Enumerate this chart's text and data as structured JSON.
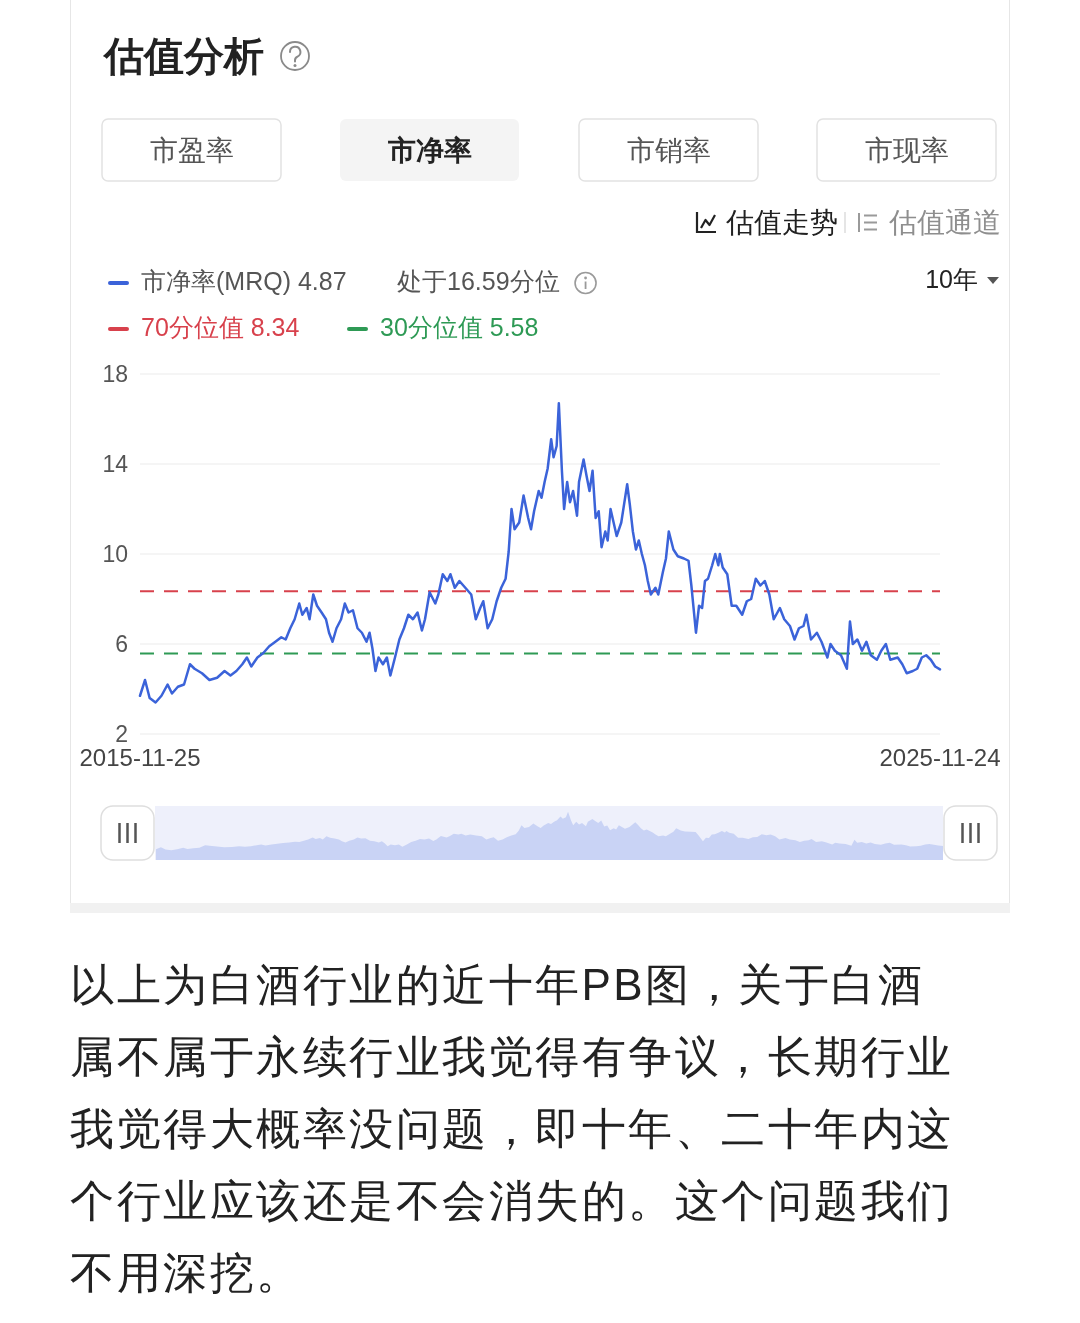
{
  "chart_data": {
    "type": "line",
    "title": "估值分析",
    "x": [
      "2015-11-25",
      "2015-12-18",
      "2016-01-08",
      "2016-02-04",
      "2016-03-02",
      "2016-03-30",
      "2016-04-19",
      "2016-05-16",
      "2016-06-13",
      "2016-07-10",
      "2016-07-31",
      "2016-09-03",
      "2016-10-07",
      "2016-11-11",
      "2016-12-15",
      "2017-01-11",
      "2017-02-07",
      "2017-03-06",
      "2017-03-27",
      "2017-04-16",
      "2017-05-14",
      "2017-06-10",
      "2017-07-07",
      "2017-08-04",
      "2017-08-31",
      "2017-09-20",
      "2017-10-11",
      "2017-10-31",
      "2017-11-21",
      "2017-12-05",
      "2017-12-25",
      "2018-01-07",
      "2018-01-24",
      "2018-02-10",
      "2018-03-03",
      "2018-03-23",
      "2018-04-06",
      "2018-04-22",
      "2018-05-10",
      "2018-05-31",
      "2018-06-17",
      "2018-07-04",
      "2018-07-24",
      "2018-08-14",
      "2018-09-03",
      "2018-09-24",
      "2018-10-08",
      "2018-10-21",
      "2018-11-04",
      "2018-11-18",
      "2018-12-08",
      "2018-12-26",
      "2019-01-11",
      "2019-02-01",
      "2019-02-21",
      "2019-03-14",
      "2019-04-03",
      "2019-04-24",
      "2019-05-15",
      "2019-06-04",
      "2019-06-18",
      "2019-07-09",
      "2019-08-04",
      "2019-08-18",
      "2019-09-07",
      "2019-09-28",
      "2019-10-12",
      "2019-11-01",
      "2019-11-22",
      "2019-12-19",
      "2020-01-15",
      "2020-02-05",
      "2020-02-25",
      "2020-03-10",
      "2020-03-30",
      "2020-04-20",
      "2020-05-10",
      "2020-05-31",
      "2020-06-20",
      "2020-07-04",
      "2020-07-17",
      "2020-07-31",
      "2020-08-21",
      "2020-09-10",
      "2020-10-01",
      "2020-10-14",
      "2020-10-28",
      "2020-11-18",
      "2020-12-01",
      "2020-12-15",
      "2020-12-29",
      "2021-01-14",
      "2021-01-25",
      "2021-02-08",
      "2021-02-18",
      "2021-03-04",
      "2021-03-14",
      "2021-03-28",
      "2021-04-10",
      "2021-04-24",
      "2021-05-12",
      "2021-05-21",
      "2021-06-11",
      "2021-06-24",
      "2021-07-08",
      "2021-07-22",
      "2021-08-05",
      "2021-08-19",
      "2021-09-01",
      "2021-09-18",
      "2021-09-29",
      "2021-10-12",
      "2021-10-26",
      "2021-11-09",
      "2021-11-30",
      "2021-12-27",
      "2022-01-08",
      "2022-01-22",
      "2022-02-05",
      "2022-02-18",
      "2022-03-04",
      "2022-03-18",
      "2022-03-31",
      "2022-04-14",
      "2022-05-05",
      "2022-05-18",
      "2022-06-08",
      "2022-06-22",
      "2022-07-05",
      "2022-07-26",
      "2022-08-15",
      "2022-09-12",
      "2022-10-03",
      "2022-10-16",
      "2022-11-06",
      "2022-11-20",
      "2022-12-04",
      "2022-12-17",
      "2022-12-31",
      "2023-01-19",
      "2023-02-02",
      "2023-02-16",
      "2023-02-23",
      "2023-03-08",
      "2023-03-29",
      "2023-04-18",
      "2023-05-09",
      "2023-06-05",
      "2023-06-26",
      "2023-07-16",
      "2023-08-06",
      "2023-08-27",
      "2023-09-16",
      "2023-10-07",
      "2023-10-27",
      "2023-11-24",
      "2023-12-14",
      "2024-01-09",
      "2024-01-30",
      "2024-02-19",
      "2024-03-11",
      "2024-03-24",
      "2024-04-14",
      "2024-05-11",
      "2024-06-01",
      "2024-06-28",
      "2024-07-12",
      "2024-08-01",
      "2024-08-29",
      "2024-09-25",
      "2024-10-09",
      "2024-10-22",
      "2024-11-12",
      "2024-12-03",
      "2024-12-23",
      "2025-01-12",
      "2025-02-09",
      "2025-03-01",
      "2025-03-22",
      "2025-04-11",
      "2025-05-15",
      "2025-06-05",
      "2025-06-25",
      "2025-07-23",
      "2025-08-12",
      "2025-09-02",
      "2025-09-22",
      "2025-10-13",
      "2025-11-02",
      "2025-11-24"
    ],
    "series": [
      {
        "name": "市净率(MRQ) 4.87",
        "color": "#3b63d9",
        "values": [
          3.7,
          4.4,
          3.6,
          3.4,
          3.7,
          4.2,
          3.8,
          4.1,
          4.2,
          5.1,
          4.9,
          4.7,
          4.4,
          4.5,
          4.8,
          4.6,
          4.8,
          5.1,
          5.4,
          5.0,
          5.4,
          5.6,
          5.9,
          6.1,
          6.3,
          6.2,
          6.7,
          7.1,
          7.8,
          7.3,
          7.6,
          7.1,
          8.2,
          7.7,
          7.4,
          7.1,
          6.5,
          6.1,
          6.7,
          7.1,
          7.8,
          7.4,
          7.5,
          6.7,
          6.5,
          6.1,
          6.5,
          5.8,
          4.8,
          5.4,
          5.1,
          5.4,
          4.6,
          5.4,
          6.2,
          6.7,
          7.3,
          7.1,
          7.4,
          6.6,
          7.1,
          8.3,
          7.8,
          8.2,
          9.1,
          8.8,
          9.1,
          8.5,
          8.8,
          8.5,
          8.2,
          7.1,
          7.6,
          7.9,
          6.7,
          7.1,
          7.9,
          8.5,
          8.9,
          10.1,
          12.0,
          11.1,
          11.4,
          12.6,
          11.6,
          11.1,
          11.9,
          12.8,
          12.5,
          13.2,
          13.8,
          15.1,
          14.3,
          14.8,
          16.7,
          13.7,
          12.0,
          13.2,
          12.3,
          12.8,
          11.7,
          13.2,
          14.2,
          13.5,
          12.8,
          13.7,
          11.6,
          11.9,
          10.3,
          11.0,
          10.6,
          12.0,
          11.4,
          10.8,
          11.4,
          13.1,
          12.2,
          11.0,
          10.2,
          10.6,
          10.0,
          9.5,
          8.8,
          8.2,
          8.5,
          8.2,
          9.2,
          9.8,
          11.0,
          10.2,
          9.9,
          9.8,
          9.7,
          8.6,
          6.5,
          7.7,
          7.6,
          8.8,
          8.9,
          9.5,
          10.0,
          9.5,
          10.0,
          9.4,
          9.1,
          7.7,
          7.7,
          7.3,
          7.9,
          8.0,
          8.9,
          8.6,
          8.8,
          8.2,
          7.1,
          7.6,
          7.1,
          6.8,
          6.2,
          6.7,
          6.8,
          7.3,
          6.2,
          6.5,
          6.1,
          5.4,
          6.0,
          5.7,
          5.5,
          4.9,
          7.0,
          6.0,
          6.2,
          5.7,
          6.1,
          5.5,
          5.3,
          5.7,
          6.0,
          5.3,
          5.4,
          5.1,
          4.7,
          4.8,
          4.9,
          5.4,
          5.5,
          5.3,
          5.0,
          4.87
        ]
      }
    ],
    "xlim": [
      "2015-11-25",
      "2025-11-24"
    ],
    "xticks": [
      "2015-11-25",
      "2025-11-24"
    ],
    "ylim": [
      2,
      18
    ],
    "yticks": [
      2,
      6,
      10,
      14,
      18
    ],
    "grid": "y",
    "legend": "top left",
    "marker": "none",
    "line_style": "solid",
    "ref_lines": [
      {
        "axis": "y",
        "value": 8.34,
        "label": "70分位值 8.34",
        "color": "#d8414c",
        "line_style": "dashed"
      },
      {
        "axis": "y",
        "value": 5.58,
        "label": "30分位值 5.58",
        "color": "#2e9a55",
        "line_style": "dashed"
      }
    ],
    "annotations": [
      "市盈率",
      "市净率",
      "市销率",
      "市现率",
      "估值走势",
      "估值通道",
      "处于16.59分位",
      "10年",
      "以上为白酒行业的近十年PB图，关于白酒属不属于永续行业我觉得有争议，长期行业我觉得大概率没问题，即十年、二十年内这个行业应该还是不会消失的。这个问题我们不用深挖。"
    ]
  }
}
